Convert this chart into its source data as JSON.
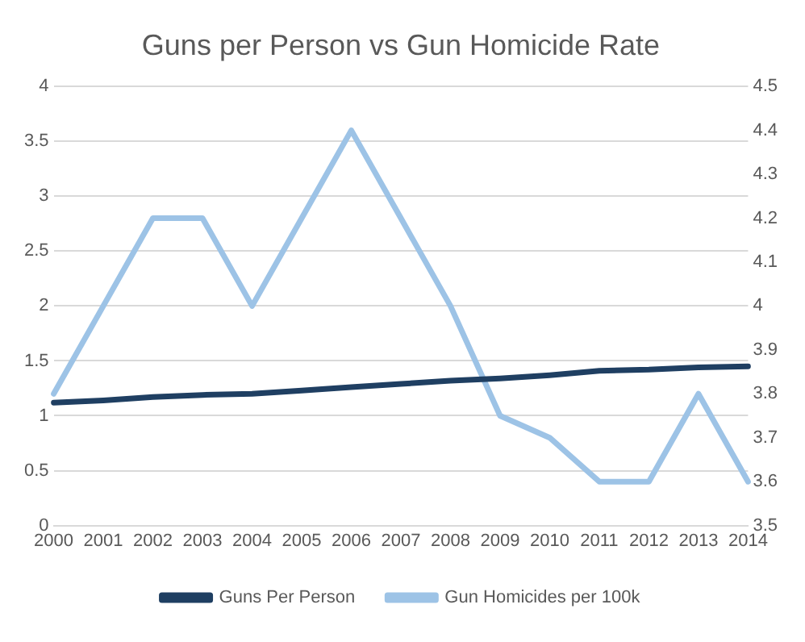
{
  "chart_data": {
    "type": "line",
    "title": "Guns per Person vs Gun Homicide Rate",
    "categories": [
      "2000",
      "2001",
      "2002",
      "2003",
      "2004",
      "2005",
      "2006",
      "2007",
      "2008",
      "2009",
      "2010",
      "2011",
      "2012",
      "2013",
      "2014"
    ],
    "series": [
      {
        "name": "Guns Per Person",
        "color": "#1f3f62",
        "values": [
          1.12,
          1.14,
          1.17,
          1.19,
          1.2,
          1.23,
          1.26,
          1.29,
          1.32,
          1.34,
          1.37,
          1.41,
          1.42,
          1.44,
          1.45
        ]
      },
      {
        "name": "Gun Homicides per 100k",
        "color": "#9dc3e6",
        "axis": "y2",
        "values": [
          3.8,
          4.0,
          4.2,
          4.2,
          4.0,
          4.2,
          4.4,
          4.2,
          4.0,
          3.75,
          3.7,
          3.6,
          3.6,
          3.8,
          3.6
        ]
      }
    ],
    "ylim": [
      0,
      4
    ],
    "yticks": [
      0,
      0.5,
      1,
      1.5,
      2,
      2.5,
      3,
      3.5,
      4
    ],
    "y2lim": [
      3.5,
      4.5
    ],
    "y2ticks": [
      3.5,
      3.6,
      3.7,
      3.8,
      3.9,
      4,
      4.1,
      4.2,
      4.3,
      4.4,
      4.5
    ],
    "grid": "y",
    "legend": "bottom",
    "marker": "none",
    "line_style": "solid"
  }
}
